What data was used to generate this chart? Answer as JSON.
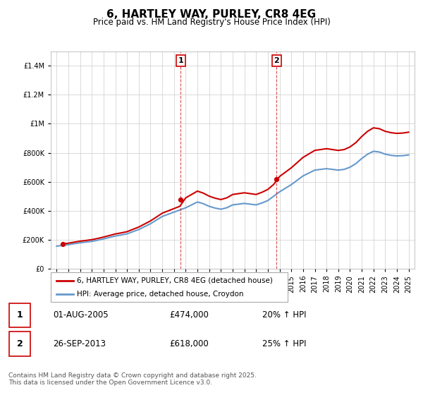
{
  "title": "6, HARTLEY WAY, PURLEY, CR8 4EG",
  "subtitle": "Price paid vs. HM Land Registry's House Price Index (HPI)",
  "red_color": "#cc0000",
  "blue_color": "#6699cc",
  "ylim_max": 1500000,
  "ylim_min": 0,
  "xlim_min": 1994.5,
  "xlim_max": 2025.5,
  "legend_label_red": "6, HARTLEY WAY, PURLEY, CR8 4EG (detached house)",
  "legend_label_blue": "HPI: Average price, detached house, Croydon",
  "footer": "Contains HM Land Registry data © Crown copyright and database right 2025.\nThis data is licensed under the Open Government Licence v3.0.",
  "table_entries": [
    {
      "num": "1",
      "date": "01-AUG-2005",
      "price": "£474,000",
      "change": "20% ↑ HPI"
    },
    {
      "num": "2",
      "date": "26-SEP-2013",
      "price": "£618,000",
      "change": "25% ↑ HPI"
    }
  ],
  "sale1_year": 1995.5,
  "sale1_price": 170000,
  "sale2_year": 2005.583,
  "sale2_price": 474000,
  "sale3_year": 2013.75,
  "sale3_price": 618000,
  "vline1_x": 2005.583,
  "vline2_x": 2013.75
}
